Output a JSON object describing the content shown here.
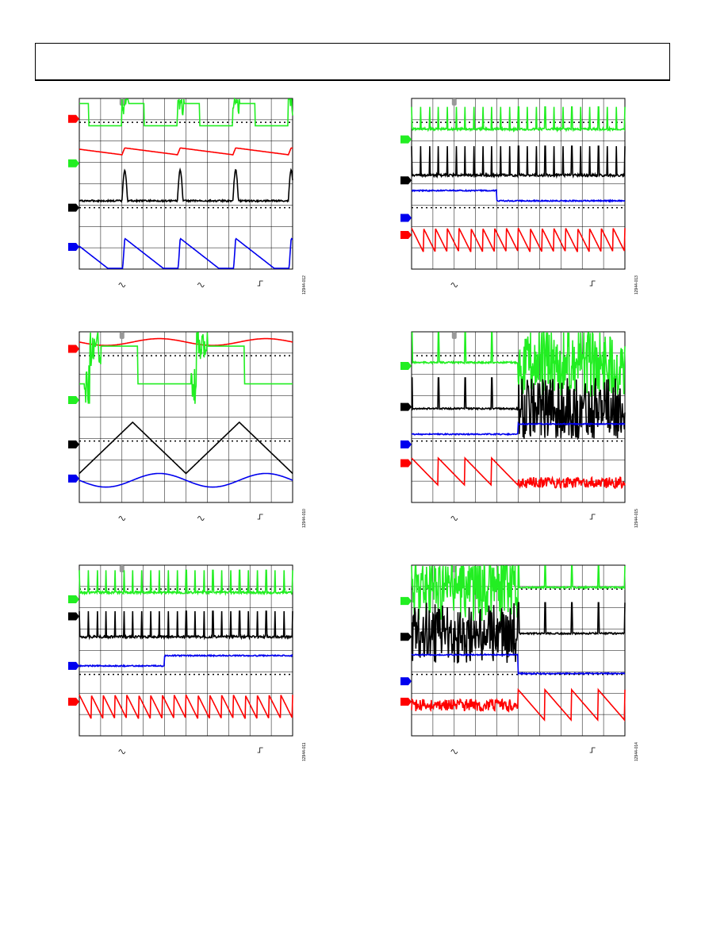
{
  "header": {
    "text": ""
  },
  "colors": {
    "red": "#ff0000",
    "green": "#22ee22",
    "black": "#000000",
    "blue": "#0000ee",
    "grid": "#000000",
    "marker": "#999999"
  },
  "plots": [
    {
      "id": "012",
      "fig_id": "12944-012",
      "traces": [
        {
          "color": "red",
          "shape": "spike-decay",
          "level": 0.33,
          "amp": 0.04,
          "period": 0.26,
          "phase": 0.2
        },
        {
          "color": "green",
          "shape": "burst-pulse",
          "level": 0.16,
          "amp": 0.13,
          "period": 0.26,
          "phase": 0.2
        },
        {
          "color": "black",
          "shape": "triangle-spike",
          "level": 0.6,
          "amp": 0.18,
          "period": 0.26,
          "phase": 0.2
        },
        {
          "color": "blue",
          "shape": "sawtooth-up",
          "level": 0.94,
          "amp": 0.12,
          "period": 0.26,
          "phase": 0.2
        }
      ],
      "markers": [
        0.12,
        0.38,
        0.64,
        0.87
      ],
      "bottom_icons": [
        "~",
        "~",
        "_|"
      ]
    },
    {
      "id": "013",
      "fig_id": "12944-013",
      "traces": [
        {
          "color": "green",
          "shape": "dense-spikes",
          "level": 0.18,
          "amp": 0.13
        },
        {
          "color": "black",
          "shape": "dense-spikes",
          "level": 0.45,
          "amp": 0.17
        },
        {
          "color": "blue",
          "shape": "step-down",
          "level": 0.57,
          "amp": 0.06,
          "step": 0.4
        },
        {
          "color": "red",
          "shape": "dense-saw",
          "level": 0.83,
          "amp": 0.07
        }
      ],
      "markers": [
        0.24,
        0.48,
        0.7,
        0.8
      ],
      "bottom_icons": [
        "~",
        "_|"
      ]
    },
    {
      "id": "010",
      "fig_id": "12944-010",
      "traces": [
        {
          "color": "red",
          "shape": "sine",
          "level": 0.06,
          "amp": 0.02,
          "period": 0.5
        },
        {
          "color": "green",
          "shape": "square-burst",
          "level": 0.22,
          "amp": 0.17,
          "period": 0.5
        },
        {
          "color": "black",
          "shape": "triangle",
          "level": 0.68,
          "amp": 0.15,
          "period": 0.5
        },
        {
          "color": "blue",
          "shape": "sine",
          "level": 0.87,
          "amp": 0.04,
          "period": 0.5
        }
      ],
      "markers": [
        0.1,
        0.4,
        0.66,
        0.86
      ],
      "bottom_icons": [
        "~",
        "~",
        "_|"
      ]
    },
    {
      "id": "015",
      "fig_id": "12944-015",
      "traces": [
        {
          "color": "green",
          "shape": "sparse-then-dense",
          "level": 0.18,
          "amp": 0.2,
          "step": 0.5
        },
        {
          "color": "black",
          "shape": "sparse-then-dense",
          "level": 0.45,
          "amp": 0.18,
          "step": 0.5
        },
        {
          "color": "blue",
          "shape": "step-up",
          "level": 0.57,
          "amp": 0.06,
          "step": 0.5
        },
        {
          "color": "red",
          "shape": "saw-then-dense",
          "level": 0.82,
          "amp": 0.08,
          "step": 0.5
        }
      ],
      "markers": [
        0.2,
        0.44,
        0.66,
        0.77
      ],
      "bottom_icons": [
        "~",
        "_|"
      ]
    },
    {
      "id": "011",
      "fig_id": "12944-011",
      "traces": [
        {
          "color": "green",
          "shape": "dense-spikes",
          "level": 0.16,
          "amp": 0.13
        },
        {
          "color": "black",
          "shape": "dense-spikes",
          "level": 0.42,
          "amp": 0.15
        },
        {
          "color": "blue",
          "shape": "step-up",
          "level": 0.56,
          "amp": 0.06,
          "step": 0.4
        },
        {
          "color": "red",
          "shape": "dense-saw",
          "level": 0.83,
          "amp": 0.07
        }
      ],
      "markers": [
        0.2,
        0.3,
        0.59,
        0.8
      ],
      "bottom_icons": [
        "~",
        "_|"
      ]
    },
    {
      "id": "014",
      "fig_id": "12944-014",
      "traces": [
        {
          "color": "green",
          "shape": "dense-then-sparse",
          "level": 0.13,
          "amp": 0.2,
          "step": 0.5
        },
        {
          "color": "black",
          "shape": "dense-then-sparse",
          "level": 0.4,
          "amp": 0.18,
          "step": 0.5
        },
        {
          "color": "blue",
          "shape": "step-down",
          "level": 0.58,
          "amp": 0.11,
          "step": 0.5
        },
        {
          "color": "red",
          "shape": "dense-then-saw",
          "level": 0.82,
          "amp": 0.09,
          "step": 0.5
        }
      ],
      "markers": [
        0.21,
        0.42,
        0.68,
        0.8
      ],
      "bottom_icons": [
        "~",
        "_|"
      ]
    }
  ]
}
